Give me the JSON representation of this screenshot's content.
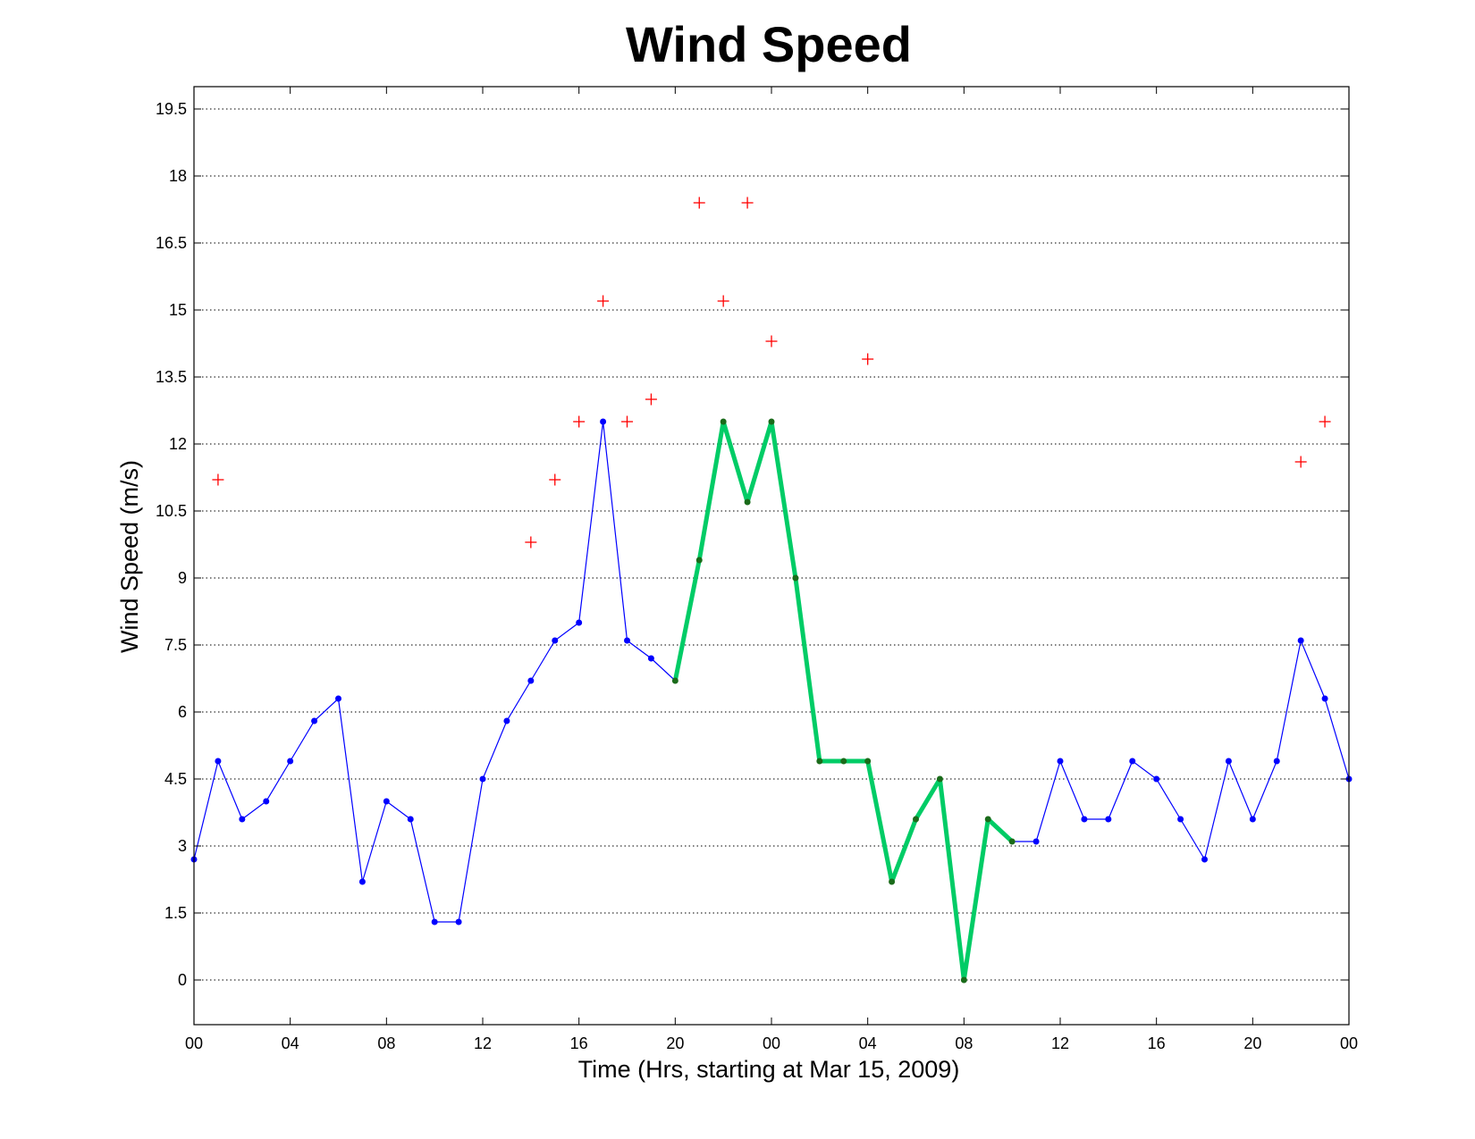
{
  "chart_data": {
    "type": "line",
    "title": "Wind Speed",
    "xlabel": "Time (Hrs, starting at Mar 15, 2009)",
    "ylabel": "Wind Speed (m/s)",
    "x_unit": "hour",
    "xlim": [
      0,
      48
    ],
    "ylim": [
      -1,
      20
    ],
    "yticks": [
      0,
      1.5,
      3,
      4.5,
      6,
      7.5,
      9,
      10.5,
      12,
      13.5,
      15,
      16.5,
      18,
      19.5
    ],
    "xticks": [
      0,
      4,
      8,
      12,
      16,
      20,
      24,
      28,
      32,
      36,
      40,
      44,
      48
    ],
    "xtick_labels": [
      "00",
      "04",
      "08",
      "12",
      "16",
      "20",
      "00",
      "04",
      "08",
      "12",
      "16",
      "20",
      "00"
    ],
    "grid": "horizontal-dotted",
    "colors": {
      "wind_speed": "#0000ff",
      "highlight": "#00cc66",
      "highlight_marker": "#1a6b1a",
      "gusts": "#ff0000"
    },
    "series": [
      {
        "style": "thin-line-with-dots",
        "color": "#0000ff",
        "x": [
          0,
          1,
          2,
          3,
          4,
          5,
          6,
          7,
          8,
          9,
          10,
          11,
          12,
          13,
          14,
          15,
          16,
          17,
          18,
          19,
          20,
          21,
          22,
          23,
          24,
          25,
          26,
          27,
          28,
          29,
          30,
          31,
          32,
          33,
          34,
          35,
          36,
          37,
          38,
          39,
          40,
          41,
          42,
          43,
          44,
          45,
          46,
          47,
          48
        ],
        "y": [
          2.7,
          4.9,
          3.6,
          4.0,
          4.9,
          5.8,
          6.3,
          2.2,
          4.0,
          3.6,
          1.3,
          1.3,
          4.5,
          5.8,
          6.7,
          7.6,
          8.0,
          12.5,
          7.6,
          7.2,
          6.7,
          9.4,
          12.5,
          10.7,
          12.5,
          9.0,
          4.9,
          4.9,
          4.9,
          2.2,
          3.6,
          4.5,
          0.0,
          3.6,
          3.1,
          3.1,
          4.9,
          3.6,
          3.6,
          4.9,
          4.5,
          3.6,
          2.7,
          4.9,
          3.6,
          4.9,
          7.6,
          6.3,
          4.5
        ]
      },
      {
        "style": "thick-line-with-dots",
        "color": "#00cc66",
        "x": [
          20,
          21,
          22,
          23,
          24,
          25,
          26,
          27,
          28,
          29,
          30,
          31,
          32,
          33,
          34
        ],
        "y": [
          6.7,
          9.4,
          12.5,
          10.7,
          12.5,
          9.0,
          4.9,
          4.9,
          4.9,
          2.2,
          3.6,
          4.5,
          0.0,
          3.6,
          3.1
        ]
      },
      {
        "style": "plus-markers",
        "color": "#ff0000",
        "x": [
          1,
          14,
          15,
          16,
          17,
          18,
          19,
          21,
          22,
          23,
          24,
          28,
          46,
          47
        ],
        "y": [
          11.2,
          9.8,
          11.2,
          12.5,
          15.2,
          12.5,
          13.0,
          17.4,
          15.2,
          17.4,
          14.3,
          13.9,
          11.6,
          12.5
        ]
      }
    ]
  }
}
